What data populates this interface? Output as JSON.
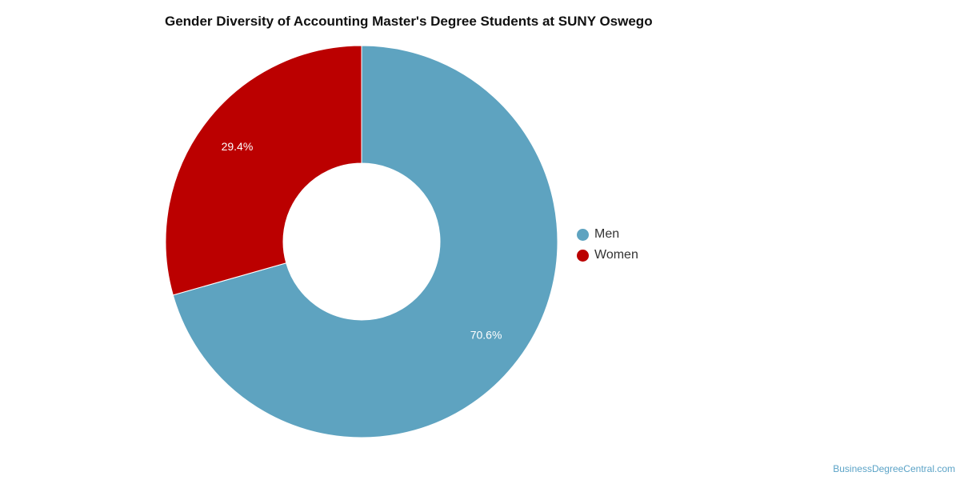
{
  "chart_data": {
    "type": "pie",
    "title": "Gender Diversity of Accounting Master's Degree Students at SUNY Oswego",
    "categories": [
      "Men",
      "Women"
    ],
    "values": [
      70.6,
      29.4
    ],
    "labels": [
      "70.6%",
      "29.4%"
    ],
    "colors": [
      "#5ea3c0",
      "#bb0000"
    ],
    "donut": true,
    "legend_position": "right"
  },
  "credit": "BusinessDegreeCentral.com"
}
